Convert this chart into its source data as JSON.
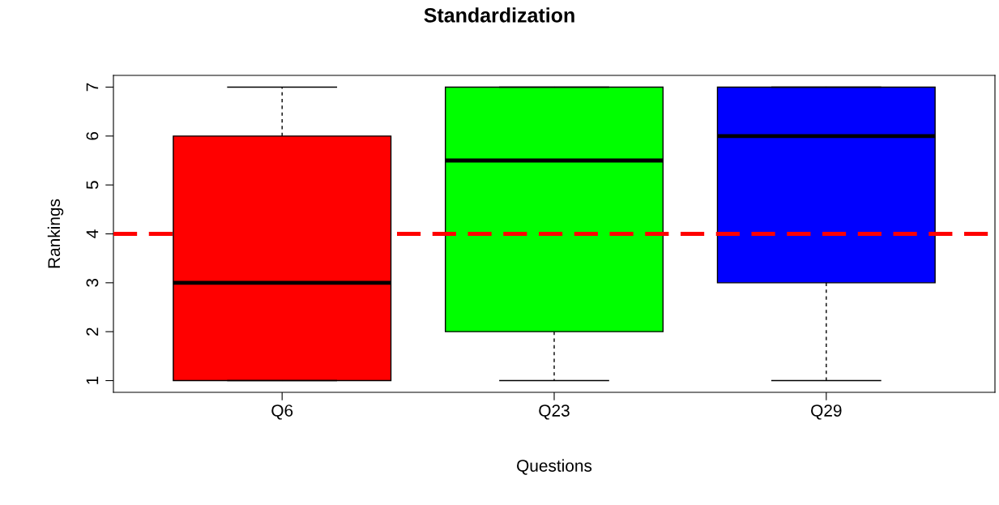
{
  "chart_data": {
    "type": "box",
    "title": "Standardization",
    "xlabel": "Questions",
    "ylabel": "Rankings",
    "categories": [
      "Q6",
      "Q23",
      "Q29"
    ],
    "colors": [
      "#ff0000",
      "#00ff00",
      "#0000ff"
    ],
    "boxes": [
      {
        "low": 1,
        "q1": 1,
        "median": 3,
        "q3": 6,
        "high": 7
      },
      {
        "low": 1,
        "q1": 2,
        "median": 5.5,
        "q3": 7,
        "high": 7
      },
      {
        "low": 1,
        "q1": 3,
        "median": 6,
        "q3": 7,
        "high": 7
      }
    ],
    "ylim": [
      0.76,
      7.24
    ],
    "yticks": [
      1,
      2,
      3,
      4,
      5,
      6,
      7
    ],
    "ref_lines": [
      {
        "axis": "y",
        "value": 4,
        "color": "#ff0000",
        "line_style": "dashed"
      }
    ],
    "grid": false,
    "legend": false
  }
}
